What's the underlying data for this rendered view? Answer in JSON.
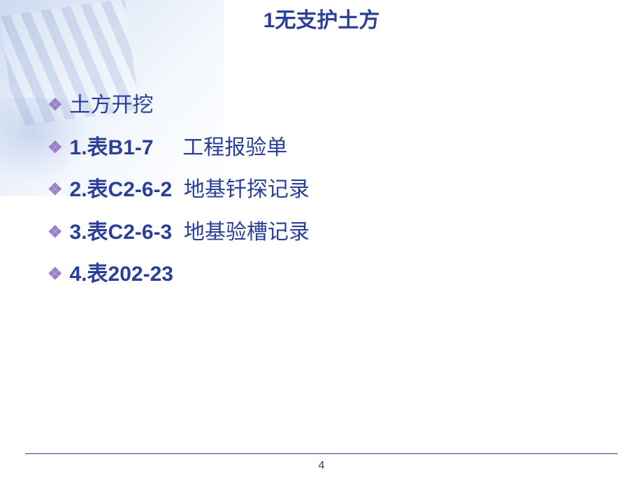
{
  "title": "1无支护土方",
  "bullets": [
    {
      "num": "",
      "code": "",
      "label": "土方开挖"
    },
    {
      "num": "1.",
      "code": "表B1-7",
      "spacer": "     ",
      "label": "工程报验单"
    },
    {
      "num": "2.",
      "code": "表C2-6-2",
      "spacer": "  ",
      "label": "地基钎探记录"
    },
    {
      "num": "3.",
      "code": "表C2-6-3",
      "spacer": "  ",
      "label": "地基验槽记录"
    },
    {
      "num": "4.",
      "code": "表202-23",
      "spacer": "",
      "label": ""
    }
  ],
  "page_number": "4",
  "colors": {
    "primary": "#2a3f9a",
    "bullet": "#9a7fc9",
    "background": "#ffffff"
  },
  "typography": {
    "title_fontsize": 30,
    "body_fontsize": 30,
    "page_fontsize": 16,
    "title_weight": "bold",
    "num_code_weight": "bold",
    "label_weight": "normal"
  }
}
